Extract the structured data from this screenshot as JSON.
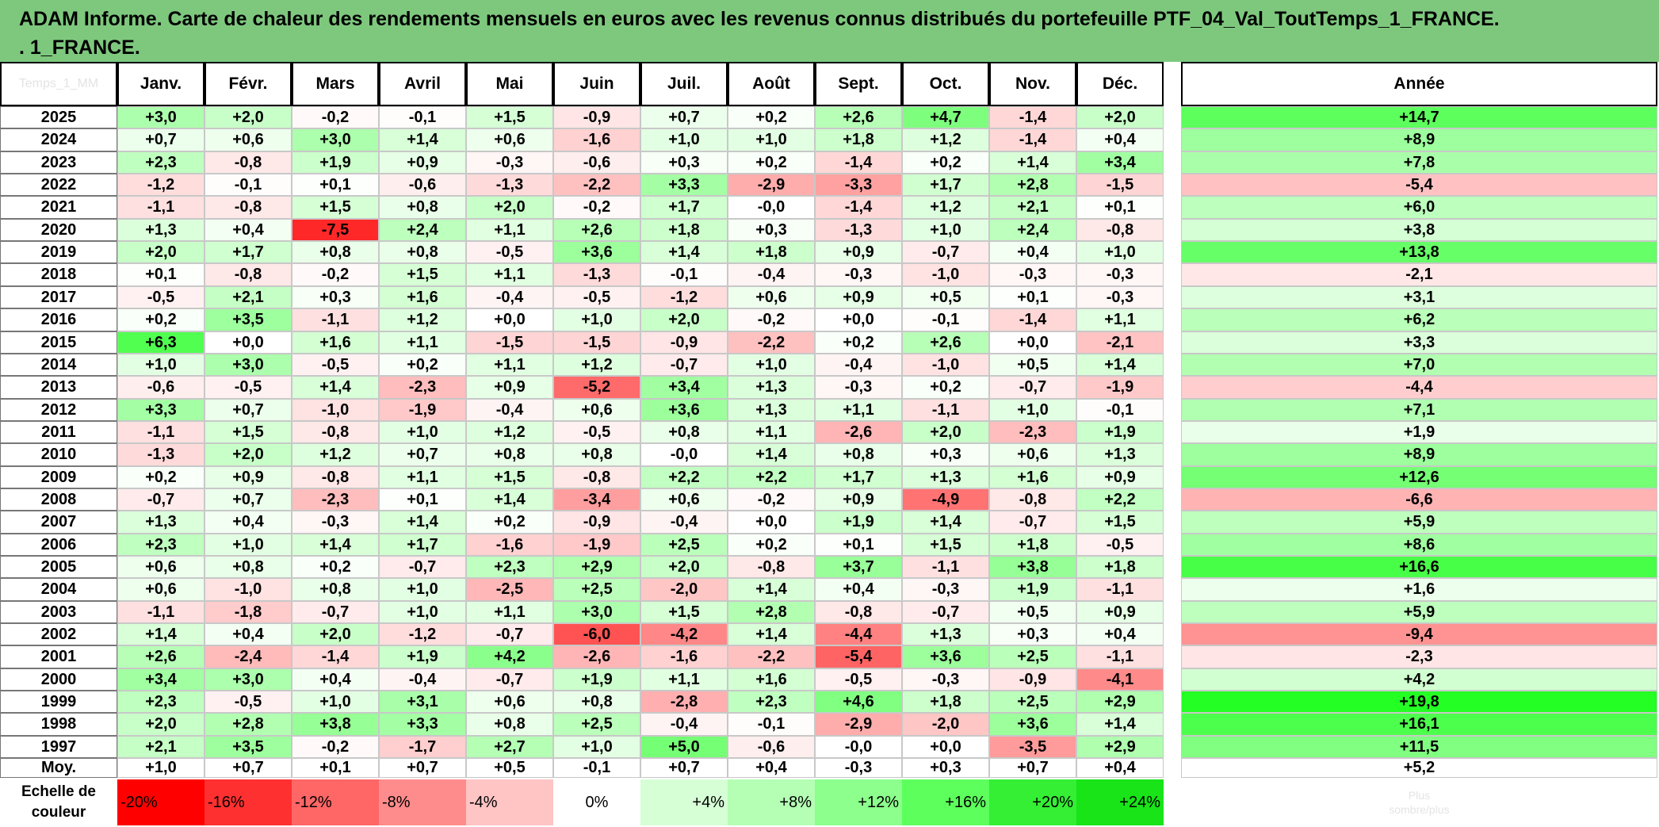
{
  "title": "ADAM Informe. Carte de chaleur des rendements mensuels en euros avec les revenus connus distribués du portefeuille PTF_04_Val_ToutTemps_1_FRANCE.\n. 1_FRANCE.",
  "corner_label": "Temps_1_MM",
  "year_total_header": "Année",
  "average_label": "Moy.",
  "legend_label": "Echelle de\ncouleur",
  "legend_trailing_text": "Plus\nsombre/plus",
  "colors": {
    "title_bg": "#7ec87e",
    "neg_max": "#ff1a1a",
    "pos_max": "#22ff22",
    "neutral": "#ffffff"
  },
  "chart_data": {
    "type": "heatmap",
    "title": "ADAM Informe. Carte de chaleur des rendements mensuels en euros avec les revenus connus distribués du portefeuille PTF_04_Val_ToutTemps_1_FRANCE. . 1_FRANCE.",
    "columns": [
      "Janv.",
      "Févr.",
      "Mars",
      "Avril",
      "Mai",
      "Juin",
      "Juil.",
      "Août",
      "Sept.",
      "Oct.",
      "Nov.",
      "Déc."
    ],
    "rows": [
      {
        "year": "2025",
        "values": [
          "+3,0",
          "+2,0",
          "-0,2",
          "-0,1",
          "+1,5",
          "-0,9",
          "+0,7",
          "+0,2",
          "+2,6",
          "+4,7",
          "-1,4",
          "+2,0"
        ],
        "annual": "+14,7"
      },
      {
        "year": "2024",
        "values": [
          "+0,7",
          "+0,6",
          "+3,0",
          "+1,4",
          "+0,6",
          "-1,6",
          "+1,0",
          "+1,0",
          "+1,8",
          "+1,2",
          "-1,4",
          "+0,4"
        ],
        "annual": "+8,9"
      },
      {
        "year": "2023",
        "values": [
          "+2,3",
          "-0,8",
          "+1,9",
          "+0,9",
          "-0,3",
          "-0,6",
          "+0,3",
          "+0,2",
          "-1,4",
          "+0,2",
          "+1,4",
          "+3,4"
        ],
        "annual": "+7,8"
      },
      {
        "year": "2022",
        "values": [
          "-1,2",
          "-0,1",
          "+0,1",
          "-0,6",
          "-1,3",
          "-2,2",
          "+3,3",
          "-2,9",
          "-3,3",
          "+1,7",
          "+2,8",
          "-1,5"
        ],
        "annual": "-5,4"
      },
      {
        "year": "2021",
        "values": [
          "-1,1",
          "-0,8",
          "+1,5",
          "+0,8",
          "+2,0",
          "-0,2",
          "+1,7",
          "-0,0",
          "-1,4",
          "+1,2",
          "+2,1",
          "+0,1"
        ],
        "annual": "+6,0"
      },
      {
        "year": "2020",
        "values": [
          "+1,3",
          "+0,4",
          "-7,5",
          "+2,4",
          "+1,1",
          "+2,6",
          "+1,8",
          "+0,3",
          "-1,3",
          "+1,0",
          "+2,4",
          "-0,8"
        ],
        "annual": "+3,8"
      },
      {
        "year": "2019",
        "values": [
          "+2,0",
          "+1,7",
          "+0,8",
          "+0,8",
          "-0,5",
          "+3,6",
          "+1,4",
          "+1,8",
          "+0,9",
          "-0,7",
          "+0,4",
          "+1,0"
        ],
        "annual": "+13,8"
      },
      {
        "year": "2018",
        "values": [
          "+0,1",
          "-0,8",
          "-0,2",
          "+1,5",
          "+1,1",
          "-1,3",
          "-0,1",
          "-0,4",
          "-0,3",
          "-1,0",
          "-0,3",
          "-0,3"
        ],
        "annual": "-2,1"
      },
      {
        "year": "2017",
        "values": [
          "-0,5",
          "+2,1",
          "+0,3",
          "+1,6",
          "-0,4",
          "-0,5",
          "-1,2",
          "+0,6",
          "+0,9",
          "+0,5",
          "+0,1",
          "-0,3"
        ],
        "annual": "+3,1"
      },
      {
        "year": "2016",
        "values": [
          "+0,2",
          "+3,5",
          "-1,1",
          "+1,2",
          "+0,0",
          "+1,0",
          "+2,0",
          "-0,2",
          "+0,0",
          "-0,1",
          "-1,4",
          "+1,1"
        ],
        "annual": "+6,2"
      },
      {
        "year": "2015",
        "values": [
          "+6,3",
          "+0,0",
          "+1,6",
          "+1,1",
          "-1,5",
          "-1,5",
          "-0,9",
          "-2,2",
          "+0,2",
          "+2,6",
          "+0,0",
          "-2,1"
        ],
        "annual": "+3,3"
      },
      {
        "year": "2014",
        "values": [
          "+1,0",
          "+3,0",
          "-0,5",
          "+0,2",
          "+1,1",
          "+1,2",
          "-0,7",
          "+1,0",
          "-0,4",
          "-1,0",
          "+0,5",
          "+1,4"
        ],
        "annual": "+7,0"
      },
      {
        "year": "2013",
        "values": [
          "-0,6",
          "-0,5",
          "+1,4",
          "-2,3",
          "+0,9",
          "-5,2",
          "+3,4",
          "+1,3",
          "-0,3",
          "+0,2",
          "-0,7",
          "-1,9"
        ],
        "annual": "-4,4"
      },
      {
        "year": "2012",
        "values": [
          "+3,3",
          "+0,7",
          "-1,0",
          "-1,9",
          "-0,4",
          "+0,6",
          "+3,6",
          "+1,3",
          "+1,1",
          "-1,1",
          "+1,0",
          "-0,1"
        ],
        "annual": "+7,1"
      },
      {
        "year": "2011",
        "values": [
          "-1,1",
          "+1,5",
          "-0,8",
          "+1,0",
          "+1,2",
          "-0,5",
          "+0,8",
          "+1,1",
          "-2,6",
          "+2,0",
          "-2,3",
          "+1,9"
        ],
        "annual": "+1,9"
      },
      {
        "year": "2010",
        "values": [
          "-1,3",
          "+2,0",
          "+1,2",
          "+0,7",
          "+0,8",
          "+0,8",
          "-0,0",
          "+1,4",
          "+0,8",
          "+0,3",
          "+0,6",
          "+1,3"
        ],
        "annual": "+8,9"
      },
      {
        "year": "2009",
        "values": [
          "+0,2",
          "+0,9",
          "-0,8",
          "+1,1",
          "+1,5",
          "-0,8",
          "+2,2",
          "+2,2",
          "+1,7",
          "+1,3",
          "+1,6",
          "+0,9"
        ],
        "annual": "+12,6"
      },
      {
        "year": "2008",
        "values": [
          "-0,7",
          "+0,7",
          "-2,3",
          "+0,1",
          "+1,4",
          "-3,4",
          "+0,6",
          "-0,2",
          "+0,9",
          "-4,9",
          "-0,8",
          "+2,2"
        ],
        "annual": "-6,6"
      },
      {
        "year": "2007",
        "values": [
          "+1,3",
          "+0,4",
          "-0,3",
          "+1,4",
          "+0,2",
          "-0,9",
          "-0,4",
          "+0,0",
          "+1,9",
          "+1,4",
          "-0,7",
          "+1,5"
        ],
        "annual": "+5,9"
      },
      {
        "year": "2006",
        "values": [
          "+2,3",
          "+1,0",
          "+1,4",
          "+1,7",
          "-1,6",
          "-1,9",
          "+2,5",
          "+0,2",
          "+0,1",
          "+1,5",
          "+1,8",
          "-0,5"
        ],
        "annual": "+8,6"
      },
      {
        "year": "2005",
        "values": [
          "+0,6",
          "+0,8",
          "+0,2",
          "-0,7",
          "+2,3",
          "+2,9",
          "+2,0",
          "-0,8",
          "+3,7",
          "-1,1",
          "+3,8",
          "+1,8"
        ],
        "annual": "+16,6"
      },
      {
        "year": "2004",
        "values": [
          "+0,6",
          "-1,0",
          "+0,8",
          "+1,0",
          "-2,5",
          "+2,5",
          "-2,0",
          "+1,4",
          "+0,4",
          "-0,3",
          "+1,9",
          "-1,1"
        ],
        "annual": "+1,6"
      },
      {
        "year": "2003",
        "values": [
          "-1,1",
          "-1,8",
          "-0,7",
          "+1,0",
          "+1,1",
          "+3,0",
          "+1,5",
          "+2,8",
          "-0,8",
          "-0,7",
          "+0,5",
          "+0,9"
        ],
        "annual": "+5,9"
      },
      {
        "year": "2002",
        "values": [
          "+1,4",
          "+0,4",
          "+2,0",
          "-1,2",
          "-0,7",
          "-6,0",
          "-4,2",
          "+1,4",
          "-4,4",
          "+1,3",
          "+0,3",
          "+0,4"
        ],
        "annual": "-9,4"
      },
      {
        "year": "2001",
        "values": [
          "+2,6",
          "-2,4",
          "-1,4",
          "+1,9",
          "+4,2",
          "-2,6",
          "-1,6",
          "-2,2",
          "-5,4",
          "+3,6",
          "+2,5",
          "-1,1"
        ],
        "annual": "-2,3"
      },
      {
        "year": "2000",
        "values": [
          "+3,4",
          "+3,0",
          "+0,4",
          "-0,4",
          "-0,7",
          "+1,9",
          "+1,1",
          "+1,6",
          "-0,5",
          "-0,3",
          "-0,9",
          "-4,1"
        ],
        "annual": "+4,2"
      },
      {
        "year": "1999",
        "values": [
          "+2,3",
          "-0,5",
          "+1,0",
          "+3,1",
          "+0,6",
          "+0,8",
          "-2,8",
          "+2,3",
          "+4,6",
          "+1,8",
          "+2,5",
          "+2,9"
        ],
        "annual": "+19,8"
      },
      {
        "year": "1998",
        "values": [
          "+2,0",
          "+2,8",
          "+3,8",
          "+3,3",
          "+0,8",
          "+2,5",
          "-0,4",
          "-0,1",
          "-2,9",
          "-2,0",
          "+3,6",
          "+1,4"
        ],
        "annual": "+16,1"
      },
      {
        "year": "1997",
        "values": [
          "+2,1",
          "+3,5",
          "-0,2",
          "-1,7",
          "+2,7",
          "+1,0",
          "+5,0",
          "-0,6",
          "-0,0",
          "+0,0",
          "-3,5",
          "+2,9"
        ],
        "annual": "+11,5"
      }
    ],
    "averages": [
      "+1,0",
      "+0,7",
      "+0,1",
      "+0,7",
      "+0,5",
      "-0,1",
      "+0,7",
      "+0,4",
      "-0,3",
      "+0,3",
      "+0,7",
      "+0,4"
    ],
    "average_annual": "+5,2",
    "color_scale": [
      "-20%",
      "-16%",
      "-12%",
      "-8%",
      "-4%",
      "0%",
      "+4%",
      "+8%",
      "+12%",
      "+16%",
      "+20%",
      "+24%"
    ]
  }
}
